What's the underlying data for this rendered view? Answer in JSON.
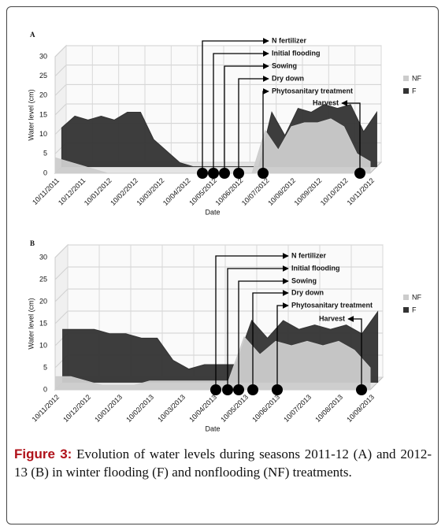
{
  "chart_data": [
    {
      "type": "area3d",
      "title": "A",
      "y_label": "Water level (cm)",
      "x_label": "Date",
      "categories": [
        "10/11/2011",
        null,
        "10/12/2011",
        null,
        "10/01/2012",
        null,
        "10/02/2012",
        null,
        "10/03/2012",
        null,
        "10/04/2012",
        null,
        "10/05/2012",
        null,
        "10/06/2012",
        null,
        "10/07/2012",
        null,
        "10/08/2012",
        null,
        "10/09/2012",
        null,
        "10/10/2012",
        null,
        "10/11/2012"
      ],
      "series": [
        {
          "name": "NF",
          "color": "#cccccc",
          "values": [
            4,
            3,
            2,
            1,
            0,
            0,
            0,
            0,
            0,
            0,
            0,
            0,
            0,
            0,
            0,
            0,
            11,
            6,
            12,
            13,
            13,
            14,
            12,
            5,
            3
          ]
        },
        {
          "name": "F",
          "color": "#333333",
          "values": [
            10,
            13,
            12,
            13,
            12,
            14,
            14,
            7,
            4,
            1,
            0,
            0,
            0,
            0,
            0,
            0,
            14,
            8,
            15,
            14,
            16,
            15,
            16,
            9,
            14
          ]
        }
      ],
      "ylim": [
        0,
        30
      ],
      "yticks": [
        0,
        5,
        10,
        15,
        20,
        25,
        30
      ],
      "grid": true,
      "legend": "right",
      "annotations": [
        "N fertilizer",
        "Initial flooding",
        "Sowing",
        "Dry down",
        "Phytosanitary treatment",
        "Harvest"
      ]
    },
    {
      "type": "area3d",
      "title": "B",
      "y_label": "Water level (cm)",
      "x_label": "Date",
      "categories": [
        "10/11/2012",
        null,
        "10/12/2012",
        null,
        "10/01/2013",
        null,
        "10/02/2013",
        null,
        "10/03/2013",
        null,
        "10/04/2013",
        null,
        "10/05/2013",
        null,
        "10/06/2013",
        null,
        "10/07/2013",
        null,
        "10/08/2013",
        null,
        "10/09/2013"
      ],
      "series": [
        {
          "name": "NF",
          "color": "#cccccc",
          "values": [
            3,
            3,
            2,
            1,
            1,
            1,
            2,
            2,
            2,
            2,
            2,
            2,
            12,
            8,
            11,
            10,
            11,
            10,
            11,
            9,
            5
          ]
        },
        {
          "name": "F",
          "color": "#333333",
          "values": [
            12,
            12,
            12,
            11,
            11,
            10,
            10,
            5,
            3,
            4,
            4,
            4,
            14,
            10,
            14,
            12,
            13,
            12,
            13,
            11,
            16
          ]
        }
      ],
      "ylim": [
        0,
        30
      ],
      "yticks": [
        0,
        5,
        10,
        15,
        20,
        25,
        30
      ],
      "grid": true,
      "legend": "right",
      "annotations": [
        "N fertilizer",
        "Initial flooding",
        "Sowing",
        "Dry down",
        "Phytosanitary treatment",
        "Harvest"
      ]
    }
  ],
  "caption": {
    "label": "Figure 3:",
    "text": "Evolution of water levels during seasons 2011-12 (A) and 2012-13 (B) in winter flooding (F) and nonflooding (NF) treatments."
  }
}
